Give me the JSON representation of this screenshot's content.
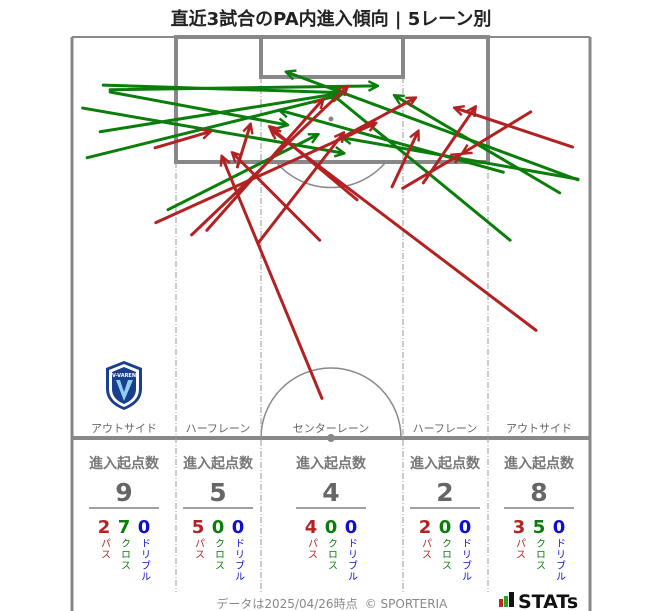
{
  "title": "直近3試合のPA内進入傾向 | 5レーン別",
  "colors": {
    "pass": "#b22222",
    "cross": "#0a7d0a",
    "dribble": "#1010cc",
    "lines": "#888888"
  },
  "pitch_units": "m",
  "lanes": [
    {
      "name": "アウトサイド",
      "header": "進入起点数",
      "total": "9",
      "pass": "2",
      "cross": "7",
      "dribble": "0"
    },
    {
      "name": "ハーフレーン",
      "header": "進入起点数",
      "total": "5",
      "pass": "5",
      "cross": "0",
      "dribble": "0"
    },
    {
      "name": "センターレーン",
      "header": "進入起点数",
      "total": "4",
      "pass": "4",
      "cross": "0",
      "dribble": "0"
    },
    {
      "name": "ハーフレーン",
      "header": "進入起点数",
      "total": "2",
      "pass": "2",
      "cross": "0",
      "dribble": "0"
    },
    {
      "name": "アウトサイド",
      "header": "進入起点数",
      "total": "8",
      "pass": "3",
      "cross": "5",
      "dribble": "0"
    }
  ],
  "labels": {
    "pass": "パス",
    "cross": "クロス",
    "dribble": "ドリブル"
  },
  "arrows": {
    "cross": [
      [
        5.0,
        6.9,
        40.0,
        6.4
      ],
      [
        4.1,
        6.3,
        35.6,
        7.3
      ],
      [
        5.0,
        7.2,
        28.2,
        11.5
      ],
      [
        1.4,
        9.3,
        35.6,
        15.2
      ],
      [
        3.7,
        12.4,
        35.6,
        7.3
      ],
      [
        2.0,
        15.8,
        35.2,
        7.6
      ],
      [
        12.6,
        22.6,
        32.2,
        12.8
      ],
      [
        66.4,
        18.7,
        28.2,
        4.6
      ],
      [
        64.0,
        20.4,
        42.4,
        7.7
      ],
      [
        56.6,
        17.7,
        27.3,
        9.6
      ],
      [
        57.5,
        26.6,
        33.9,
        7.3
      ],
      [
        66.4,
        18.6,
        35.6,
        13.2
      ]
    ],
    "pass": [
      [
        10.9,
        14.5,
        18.1,
        12.4
      ],
      [
        11.0,
        24.3,
        39.8,
        11.3
      ],
      [
        15.7,
        25.9,
        36.1,
        6.5
      ],
      [
        17.7,
        25.3,
        32.9,
        8.2
      ],
      [
        21.7,
        17.0,
        23.4,
        11.5
      ],
      [
        24.4,
        27.0,
        35.6,
        12.6
      ],
      [
        32.8,
        47.3,
        19.7,
        15.7
      ],
      [
        32.5,
        26.6,
        21.1,
        15.2
      ],
      [
        37.4,
        21.3,
        26.0,
        11.8
      ],
      [
        60.9,
        38.4,
        26.2,
        12.2
      ],
      [
        42.0,
        19.6,
        45.4,
        12.4
      ],
      [
        34.8,
        13.5,
        45.0,
        8.0
      ],
      [
        43.4,
        19.8,
        50.9,
        15.4
      ],
      [
        46.1,
        19.1,
        52.9,
        9.2
      ],
      [
        65.7,
        14.4,
        50.3,
        9.3
      ],
      [
        60.2,
        9.8,
        51.3,
        15.2
      ]
    ]
  },
  "team_logo": {
    "text": "V-VAREN",
    "color": "#1a3f8f"
  },
  "footer": {
    "note": "データは2025/04/26時点",
    "copyright": "© SPORTERIA",
    "brand": "STATs"
  }
}
